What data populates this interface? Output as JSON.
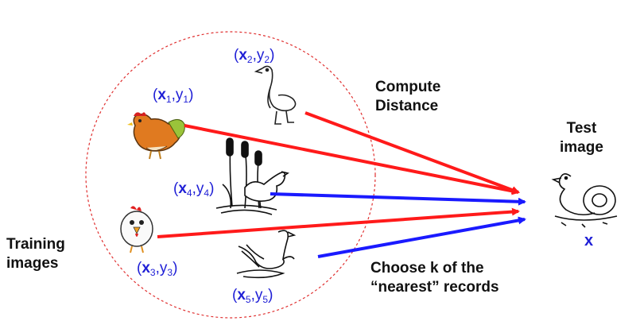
{
  "labels": {
    "training": {
      "line1": "Training",
      "line2": "images"
    },
    "test": {
      "line1": "Test",
      "line2": "image"
    },
    "compute": {
      "line1": "Compute",
      "line2": "Distance"
    },
    "choose": {
      "line1": "Choose k of the",
      "line2": "“nearest” records"
    },
    "test_var": "x"
  },
  "records": [
    {
      "x": "x",
      "y": "y",
      "i": "1"
    },
    {
      "x": "x",
      "y": "y",
      "i": "2"
    },
    {
      "x": "x",
      "y": "y",
      "i": "3"
    },
    {
      "x": "x",
      "y": "y",
      "i": "4"
    },
    {
      "x": "x",
      "y": "y",
      "i": "5"
    }
  ],
  "colors": {
    "distance_arrow": "#ff1a1a",
    "nearest_arrow": "#1a1aff",
    "label": "#1f1fd6",
    "boundary": "#e03030"
  },
  "icons": [
    "hen-icon",
    "goose-icon",
    "duck-icon",
    "chick-icon",
    "swan-icon",
    "rubber-duck-icon"
  ]
}
